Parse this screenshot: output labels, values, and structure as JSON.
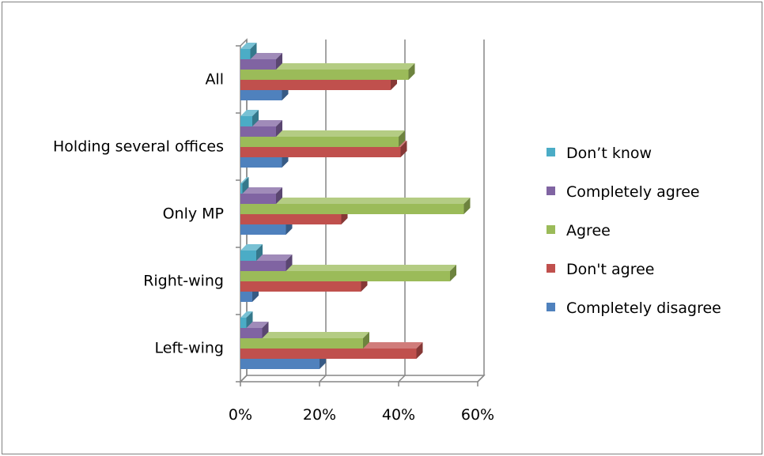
{
  "chart_data": {
    "type": "bar",
    "orientation": "horizontal",
    "style": "3d-clustered",
    "categories": [
      "Left-wing",
      "Right-wing",
      "Only MP",
      "Holding several offices",
      "All"
    ],
    "series": [
      {
        "name": "Completely disagree",
        "color": "#4F81BD",
        "values": [
          20,
          3,
          11.5,
          10.5,
          10.5
        ]
      },
      {
        "name": "Don't agree",
        "color": "#C0504D",
        "values": [
          44.5,
          30.5,
          25.5,
          40.5,
          38
        ]
      },
      {
        "name": "Agree",
        "color": "#9BBB59",
        "values": [
          31,
          53,
          56.5,
          40,
          42.5
        ]
      },
      {
        "name": "Completely agree",
        "color": "#8064A2",
        "values": [
          5.5,
          11.5,
          9,
          9,
          9
        ]
      },
      {
        "name": "Don’t know",
        "color": "#4BACC6",
        "values": [
          1.5,
          4,
          0.5,
          3,
          2.5
        ]
      }
    ],
    "x_ticks": [
      "0%",
      "20%",
      "40%",
      "60%"
    ],
    "xlim": [
      0,
      60
    ],
    "grid": true,
    "legend_position": "right"
  }
}
